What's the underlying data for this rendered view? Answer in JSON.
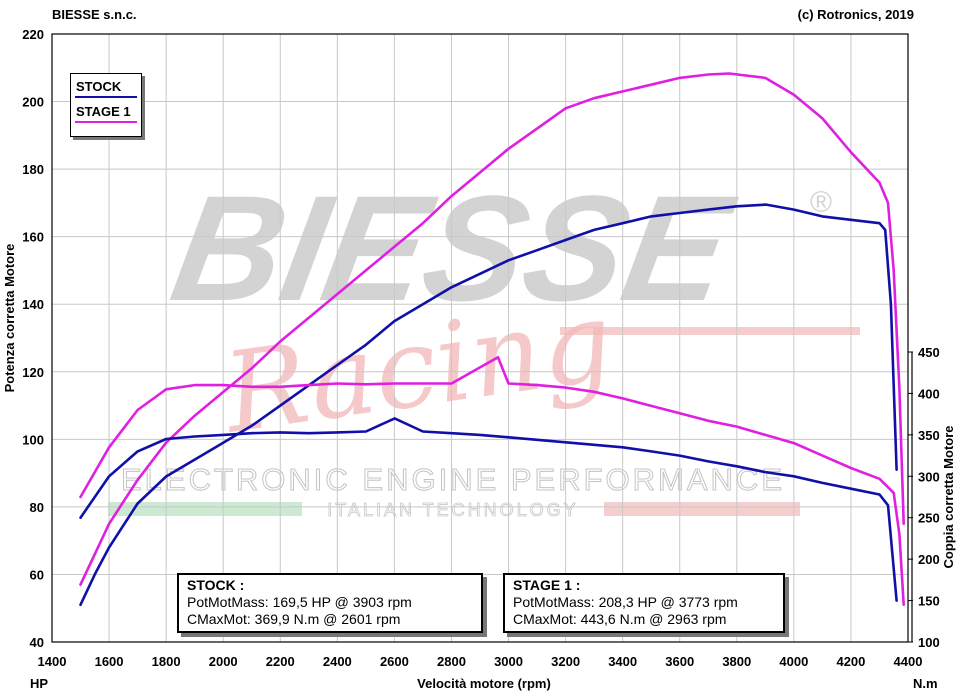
{
  "header": {
    "left": "BIESSE s.n.c.",
    "right": "(c) Rotronics, 2019"
  },
  "watermark": {
    "brand": "BIESSE",
    "registered": "®",
    "script": "Racing",
    "tagline": "ELECTRONIC ENGINE PERFORMANCE",
    "subtagline": "ITALIAN TECHNOLOGY"
  },
  "colors": {
    "stock": "#1010a8",
    "stage1": "#e020e0",
    "grid": "#c8c8c8"
  },
  "chart_data": {
    "type": "line",
    "xlabel": "Velocità motore (rpm)",
    "xunit": "HP",
    "ylabel": "Potenza corretta Motore",
    "y2label": "Coppia corretta Motore",
    "y2unit": "N.m",
    "xlim": [
      1400,
      4400
    ],
    "ylim": [
      40,
      220
    ],
    "y2lim": [
      100,
      450
    ],
    "xticks": [
      1400,
      1600,
      1800,
      2000,
      2200,
      2400,
      2600,
      2800,
      3000,
      3200,
      3400,
      3600,
      3800,
      4000,
      4200,
      4400
    ],
    "yticks": [
      40,
      60,
      80,
      100,
      120,
      140,
      160,
      180,
      200,
      220
    ],
    "y2ticks": [
      100,
      150,
      200,
      250,
      300,
      350,
      400,
      450
    ],
    "grid": true,
    "legend_position": "top-left",
    "series": [
      {
        "name": "STOCK",
        "quantity": "power",
        "axis": "left",
        "color": "#1010a8",
        "points": [
          [
            1500,
            51
          ],
          [
            1550,
            60
          ],
          [
            1600,
            68
          ],
          [
            1700,
            81
          ],
          [
            1800,
            89
          ],
          [
            1900,
            94
          ],
          [
            2000,
            99
          ],
          [
            2100,
            104
          ],
          [
            2200,
            110
          ],
          [
            2300,
            116
          ],
          [
            2400,
            122
          ],
          [
            2500,
            128
          ],
          [
            2600,
            135
          ],
          [
            2700,
            140
          ],
          [
            2800,
            145
          ],
          [
            2900,
            149
          ],
          [
            3000,
            153
          ],
          [
            3100,
            156
          ],
          [
            3200,
            159
          ],
          [
            3300,
            162
          ],
          [
            3400,
            164
          ],
          [
            3500,
            166
          ],
          [
            3600,
            167
          ],
          [
            3700,
            168
          ],
          [
            3800,
            169
          ],
          [
            3903,
            169.5
          ],
          [
            4000,
            168
          ],
          [
            4100,
            166
          ],
          [
            4200,
            165
          ],
          [
            4300,
            164
          ],
          [
            4320,
            162
          ],
          [
            4340,
            140
          ],
          [
            4360,
            91
          ]
        ]
      },
      {
        "name": "STAGE 1",
        "quantity": "power",
        "axis": "left",
        "color": "#e020e0",
        "points": [
          [
            1500,
            57
          ],
          [
            1550,
            66
          ],
          [
            1600,
            75
          ],
          [
            1700,
            88
          ],
          [
            1800,
            99
          ],
          [
            1900,
            107
          ],
          [
            2000,
            114
          ],
          [
            2100,
            121
          ],
          [
            2200,
            129
          ],
          [
            2300,
            136
          ],
          [
            2400,
            143
          ],
          [
            2500,
            150
          ],
          [
            2600,
            157
          ],
          [
            2700,
            164
          ],
          [
            2800,
            172
          ],
          [
            2900,
            179
          ],
          [
            3000,
            186
          ],
          [
            3100,
            192
          ],
          [
            3200,
            198
          ],
          [
            3300,
            201
          ],
          [
            3400,
            203
          ],
          [
            3500,
            205
          ],
          [
            3600,
            207
          ],
          [
            3700,
            208
          ],
          [
            3773,
            208.3
          ],
          [
            3900,
            207
          ],
          [
            4000,
            202
          ],
          [
            4100,
            195
          ],
          [
            4200,
            185
          ],
          [
            4300,
            176
          ],
          [
            4330,
            170
          ],
          [
            4350,
            150
          ],
          [
            4370,
            115
          ],
          [
            4385,
            75
          ]
        ]
      },
      {
        "name": "STOCK",
        "quantity": "torque",
        "axis": "right",
        "color": "#1010a8",
        "points": [
          [
            1500,
            250
          ],
          [
            1600,
            300
          ],
          [
            1700,
            330
          ],
          [
            1800,
            345
          ],
          [
            1900,
            348
          ],
          [
            2000,
            350
          ],
          [
            2100,
            352
          ],
          [
            2200,
            353
          ],
          [
            2300,
            352
          ],
          [
            2400,
            353
          ],
          [
            2500,
            354
          ],
          [
            2601,
            369.9
          ],
          [
            2700,
            354
          ],
          [
            2800,
            352
          ],
          [
            2900,
            350
          ],
          [
            3000,
            347
          ],
          [
            3100,
            344
          ],
          [
            3200,
            341
          ],
          [
            3300,
            338
          ],
          [
            3400,
            335
          ],
          [
            3500,
            330
          ],
          [
            3600,
            325
          ],
          [
            3700,
            318
          ],
          [
            3800,
            312
          ],
          [
            3900,
            305
          ],
          [
            4000,
            300
          ],
          [
            4100,
            292
          ],
          [
            4200,
            285
          ],
          [
            4300,
            278
          ],
          [
            4330,
            265
          ],
          [
            4360,
            150
          ]
        ]
      },
      {
        "name": "STAGE 1",
        "quantity": "torque",
        "axis": "right",
        "color": "#e020e0",
        "points": [
          [
            1500,
            275
          ],
          [
            1600,
            335
          ],
          [
            1700,
            380
          ],
          [
            1800,
            405
          ],
          [
            1900,
            410
          ],
          [
            2000,
            410
          ],
          [
            2100,
            408
          ],
          [
            2200,
            408
          ],
          [
            2300,
            410
          ],
          [
            2400,
            412
          ],
          [
            2500,
            411
          ],
          [
            2600,
            412
          ],
          [
            2700,
            412
          ],
          [
            2800,
            412
          ],
          [
            2963,
            443.6
          ],
          [
            3000,
            412
          ],
          [
            3100,
            410
          ],
          [
            3200,
            407
          ],
          [
            3300,
            402
          ],
          [
            3400,
            394
          ],
          [
            3500,
            385
          ],
          [
            3600,
            376
          ],
          [
            3700,
            367
          ],
          [
            3800,
            360
          ],
          [
            3900,
            350
          ],
          [
            4000,
            340
          ],
          [
            4100,
            325
          ],
          [
            4200,
            310
          ],
          [
            4300,
            297
          ],
          [
            4350,
            280
          ],
          [
            4370,
            230
          ],
          [
            4385,
            145
          ]
        ]
      }
    ],
    "boxes": [
      {
        "title": "STOCK :",
        "line1": "PotMotMass: 169,5 HP @ 3903 rpm",
        "line2": "CMaxMot: 369,9 N.m @ 2601 rpm"
      },
      {
        "title": "STAGE 1 :",
        "line1": "PotMotMass: 208,3 HP @ 3773 rpm",
        "line2": "CMaxMot: 443,6 N.m @ 2963 rpm"
      }
    ]
  }
}
